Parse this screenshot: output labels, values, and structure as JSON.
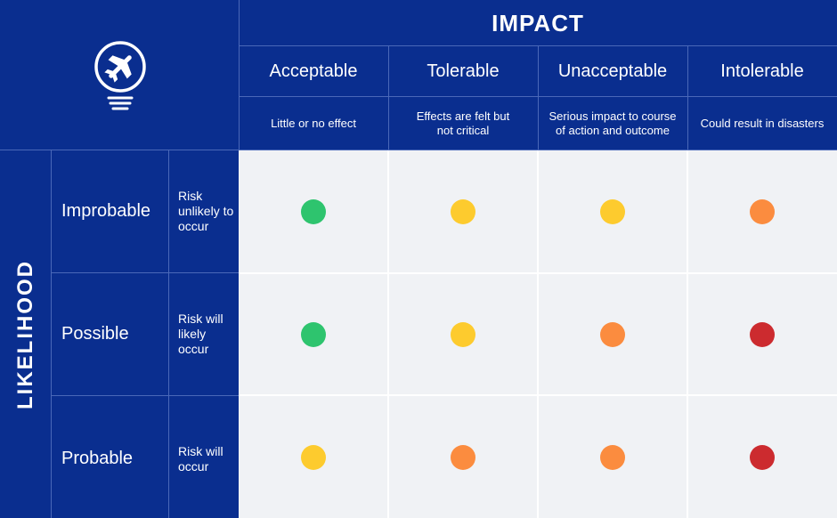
{
  "impact_title": "IMPACT",
  "likelihood_title": "LIKELIHOOD",
  "columns": [
    {
      "label": "Acceptable",
      "description": "Little or no effect"
    },
    {
      "label": "Tolerable",
      "description": "Effects are felt but not critical"
    },
    {
      "label": "Unacceptable",
      "description": "Serious impact to course of action and outcome"
    },
    {
      "label": "Intolerable",
      "description": "Could result in disasters"
    }
  ],
  "rows": [
    {
      "label": "Improbable",
      "description": "Risk unlikely to occur",
      "levels": [
        "green",
        "yellow",
        "yellow",
        "orange"
      ]
    },
    {
      "label": "Possible",
      "description": "Risk will likely occur",
      "levels": [
        "green",
        "yellow",
        "orange",
        "red"
      ]
    },
    {
      "label": "Probable",
      "description": "Risk will occur",
      "levels": [
        "yellow",
        "orange",
        "orange",
        "red"
      ]
    }
  ],
  "colors": {
    "navy": "#0a2e8f",
    "cell_bg": "#f0f2f5",
    "green": "#2ec46e",
    "yellow": "#fdcb2e",
    "orange": "#fb8c3f",
    "red": "#cc2b2f"
  },
  "logo_icon": "lightbulb-airplane-icon"
}
